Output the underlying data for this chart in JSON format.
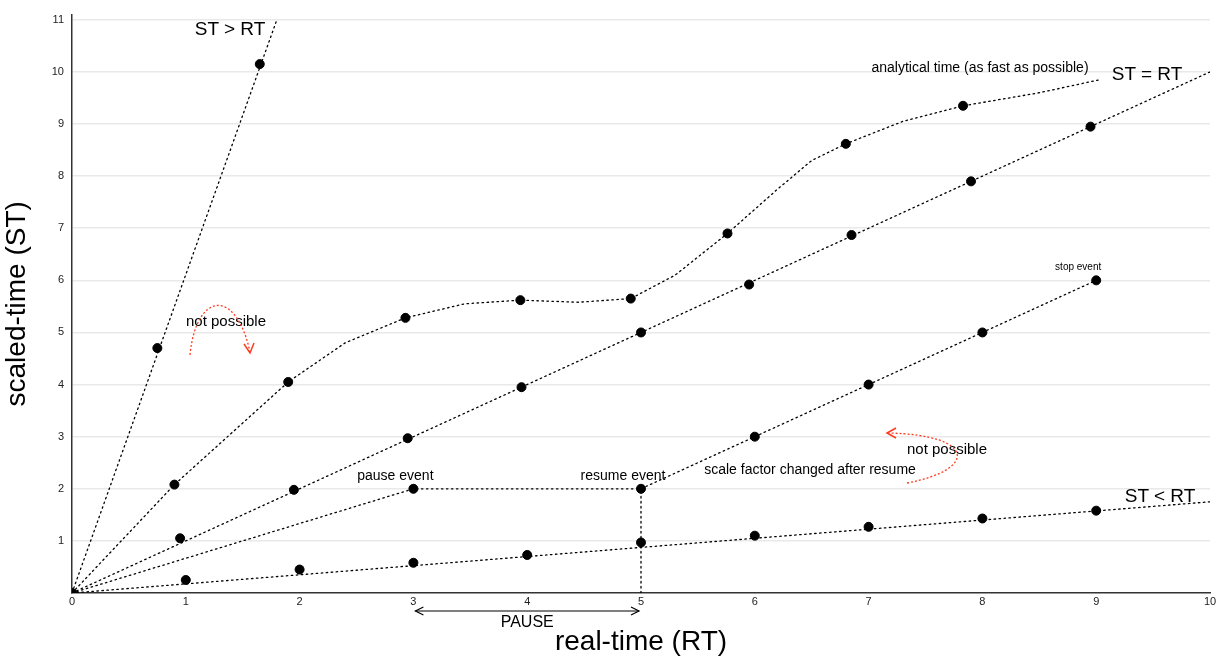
{
  "chart_data": {
    "type": "scatter",
    "xlabel": "real-time (RT)",
    "ylabel": "scaled-time (ST)",
    "xlim": [
      0,
      10
    ],
    "ylim": [
      0,
      11.1
    ],
    "xticks": [
      0,
      1,
      2,
      3,
      4,
      5,
      6,
      7,
      8,
      9,
      10
    ],
    "yticks": [
      1,
      2,
      3,
      4,
      5,
      6,
      7,
      8,
      9,
      10,
      11
    ],
    "grid": "y",
    "legend": false,
    "series": [
      {
        "type": "line",
        "color": "#000000",
        "marker": "none",
        "line_style": "dotted",
        "x": [
          0,
          1.8
        ],
        "values": [
          0,
          11
        ]
      },
      {
        "type": "scatter",
        "color": "#000000",
        "marker": "circle",
        "x": [
          0.75,
          1.65
        ],
        "values": [
          4.7,
          10.15
        ]
      },
      {
        "type": "line",
        "color": "#000000",
        "marker": "none",
        "line_style": "dotted",
        "x": [
          0,
          0.9,
          1.9,
          2.4,
          2.93,
          3.45,
          3.94,
          4.45,
          4.91,
          5.3,
          5.76,
          6.2,
          6.5,
          6.8,
          7.3,
          7.83,
          8.5,
          9.03
        ],
        "values": [
          0,
          2.08,
          4.05,
          4.8,
          5.28,
          5.55,
          5.62,
          5.58,
          5.65,
          6.1,
          6.9,
          7.75,
          8.3,
          8.62,
          9.05,
          9.35,
          9.6,
          9.85
        ]
      },
      {
        "type": "scatter",
        "color": "#000000",
        "marker": "circle",
        "x": [
          0.9,
          1.9,
          2.93,
          3.94,
          4.91,
          5.76,
          6.8,
          7.83
        ],
        "values": [
          2.08,
          4.05,
          5.28,
          5.62,
          5.65,
          6.9,
          8.62,
          9.35
        ]
      },
      {
        "type": "line",
        "color": "#000000",
        "marker": "none",
        "line_style": "dotted",
        "x": [
          0,
          10
        ],
        "values": [
          0,
          10
        ]
      },
      {
        "type": "scatter",
        "color": "#000000",
        "marker": "circle",
        "x": [
          0,
          0.95,
          1.95,
          2.95,
          3.95,
          5,
          5.95,
          6.85,
          7.9,
          8.95
        ],
        "values": [
          0,
          1.05,
          1.98,
          2.97,
          3.95,
          5,
          5.92,
          6.87,
          7.9,
          8.95
        ]
      },
      {
        "type": "line",
        "color": "#000000",
        "marker": "none",
        "line_style": "dotted",
        "x": [
          0,
          3,
          5,
          6,
          7,
          8,
          9
        ],
        "values": [
          0,
          2,
          2,
          3,
          4,
          5,
          6
        ]
      },
      {
        "type": "scatter",
        "color": "#000000",
        "marker": "circle",
        "x": [
          3,
          5,
          6,
          7,
          8,
          9
        ],
        "values": [
          2,
          2,
          3,
          4,
          5,
          6
        ]
      },
      {
        "type": "line",
        "color": "#000000",
        "marker": "none",
        "line_style": "dotted",
        "x": [
          5,
          5
        ],
        "values": [
          0,
          2
        ]
      },
      {
        "type": "line",
        "color": "#000000",
        "marker": "none",
        "line_style": "dotted",
        "x": [
          0,
          10
        ],
        "values": [
          0,
          1.75
        ]
      },
      {
        "type": "scatter",
        "color": "#000000",
        "marker": "circle",
        "x": [
          1,
          2,
          3,
          4,
          5,
          6,
          7,
          8,
          9
        ],
        "values": [
          0.25,
          0.45,
          0.58,
          0.73,
          0.97,
          1.1,
          1.27,
          1.43,
          1.58
        ]
      }
    ],
    "annotations": [
      "ST > RT",
      "analytical time (as fast as possible)",
      "ST = RT",
      {
        "text": "stop event",
        "x": 9,
        "y": 6
      },
      "not possible",
      "not possible",
      {
        "text": "pause event",
        "x": 3,
        "y": 2
      },
      {
        "text": "resume event",
        "x": 5,
        "y": 2
      },
      "scale factor changed after resume",
      "ST < RT",
      "PAUSE"
    ]
  }
}
